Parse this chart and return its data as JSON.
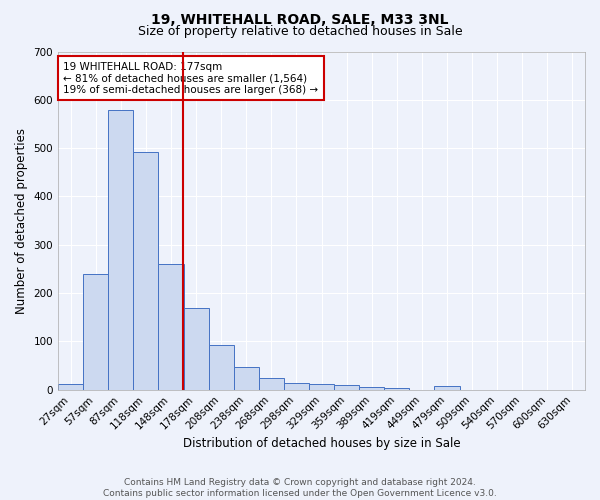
{
  "title": "19, WHITEHALL ROAD, SALE, M33 3NL",
  "subtitle": "Size of property relative to detached houses in Sale",
  "xlabel": "Distribution of detached houses by size in Sale",
  "ylabel": "Number of detached properties",
  "footer_line1": "Contains HM Land Registry data © Crown copyright and database right 2024.",
  "footer_line2": "Contains public sector information licensed under the Open Government Licence v3.0.",
  "bin_labels": [
    "27sqm",
    "57sqm",
    "87sqm",
    "118sqm",
    "148sqm",
    "178sqm",
    "208sqm",
    "238sqm",
    "268sqm",
    "298sqm",
    "329sqm",
    "359sqm",
    "389sqm",
    "419sqm",
    "449sqm",
    "479sqm",
    "509sqm",
    "540sqm",
    "570sqm",
    "600sqm",
    "630sqm"
  ],
  "bar_values": [
    12,
    240,
    578,
    492,
    260,
    170,
    92,
    48,
    25,
    14,
    12,
    10,
    6,
    4,
    0,
    8,
    0,
    0,
    0,
    0,
    0
  ],
  "bar_color": "#ccd9f0",
  "bar_edge_color": "#4472c4",
  "vline_color": "#cc0000",
  "annotation_line1": "19 WHITEHALL ROAD: 177sqm",
  "annotation_line2": "← 81% of detached houses are smaller (1,564)",
  "annotation_line3": "19% of semi-detached houses are larger (368) →",
  "annotation_box_edge": "#cc0000",
  "annotation_box_fill": "white",
  "ylim": [
    0,
    700
  ],
  "yticks": [
    0,
    100,
    200,
    300,
    400,
    500,
    600,
    700
  ],
  "bg_color": "#eef2fb",
  "plot_bg_color": "#eef2fb",
  "grid_color": "white",
  "title_fontsize": 10,
  "subtitle_fontsize": 9,
  "axis_label_fontsize": 8.5,
  "tick_fontsize": 7.5,
  "annotation_fontsize": 7.5
}
